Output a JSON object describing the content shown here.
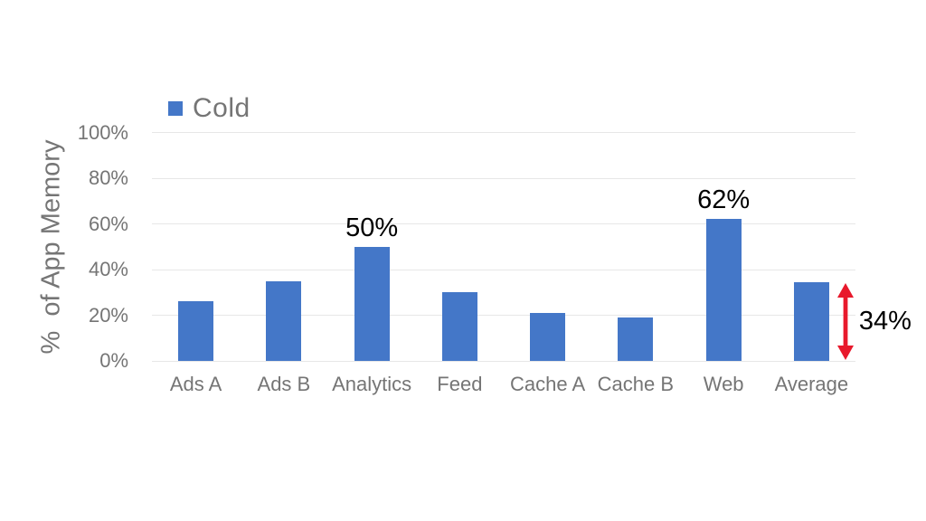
{
  "chart_data": {
    "type": "bar",
    "title": "",
    "categories": [
      "Ads A",
      "Ads B",
      "Analytics",
      "Feed",
      "Cache A",
      "Cache B",
      "Web",
      "Average"
    ],
    "series": [
      {
        "name": "Cold",
        "color": "#4477C8",
        "values": [
          26,
          35,
          50,
          30,
          21,
          19,
          62,
          34.5
        ]
      }
    ],
    "ylabel": "%  of App Memory",
    "xlabel": "",
    "ylim": [
      0,
      100
    ],
    "yticks": [
      {
        "label": "0%",
        "value": 0
      },
      {
        "label": "20%",
        "value": 20
      },
      {
        "label": "40%",
        "value": 40
      },
      {
        "label": "60%",
        "value": 60
      },
      {
        "label": "80%",
        "value": 80
      },
      {
        "label": "100%",
        "value": 100
      }
    ],
    "grid": true,
    "legend_position": "top-left",
    "annotations": [
      {
        "type": "value-label",
        "text": "50%",
        "category": "Analytics",
        "color": "#000000"
      },
      {
        "type": "value-label",
        "text": "62%",
        "category": "Web",
        "color": "#000000"
      },
      {
        "type": "range-arrow",
        "text": "34%",
        "category": "Average",
        "text_color": "#000000",
        "arrow_color": "#E8192C"
      }
    ]
  },
  "colors": {
    "background": "#FFFFFF",
    "bar_fill": "#4477C8",
    "axis_text": "#757575",
    "gridline": "#E7E7E7",
    "annotation_text": "#000000",
    "arrow_red": "#E8192C"
  }
}
